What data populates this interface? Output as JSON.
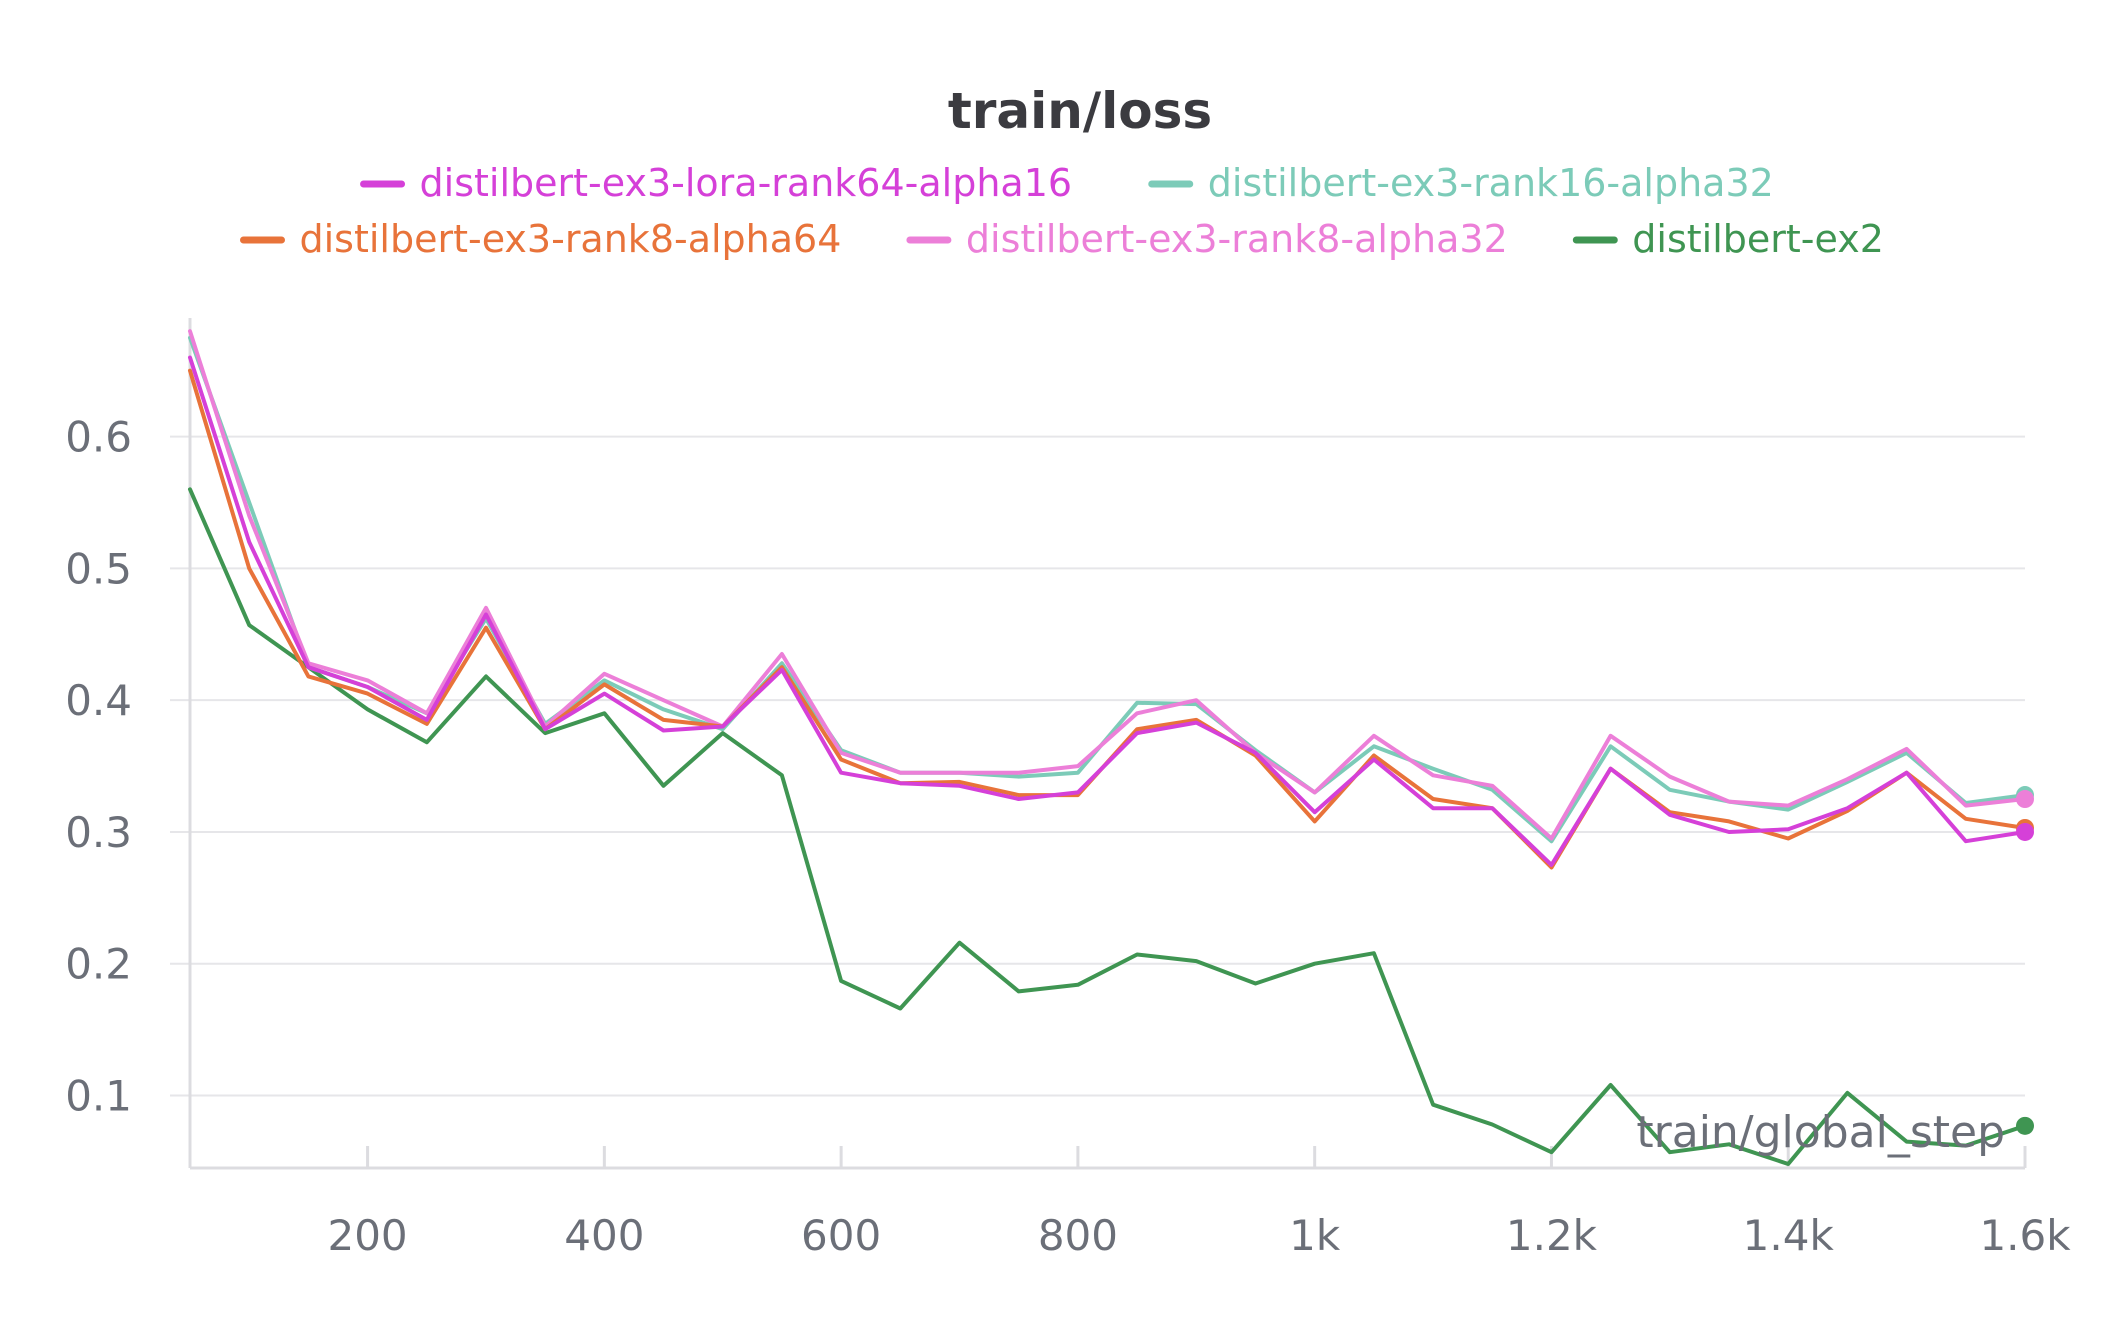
{
  "chart_data": {
    "type": "line",
    "title": "train/loss",
    "xlabel": "train/global_step",
    "ylabel": "",
    "xlim": [
      50,
      1600
    ],
    "ylim": [
      0.045,
      0.69
    ],
    "x_ticks": [
      200,
      400,
      600,
      800,
      1000,
      1200,
      1400,
      1600
    ],
    "x_tick_labels": [
      "200",
      "400",
      "600",
      "800",
      "1k",
      "1.2k",
      "1.4k",
      "1.6k"
    ],
    "y_ticks": [
      0.1,
      0.2,
      0.3,
      0.4,
      0.5,
      0.6
    ],
    "y_tick_labels": [
      "0.1",
      "0.2",
      "0.3",
      "0.4",
      "0.5",
      "0.6"
    ],
    "grid": true,
    "legend_position": "top",
    "x": [
      50,
      100,
      150,
      200,
      250,
      300,
      350,
      400,
      450,
      500,
      550,
      600,
      650,
      700,
      750,
      800,
      850,
      900,
      950,
      1000,
      1050,
      1100,
      1150,
      1200,
      1250,
      1300,
      1350,
      1400,
      1450,
      1500,
      1550,
      1600
    ],
    "series": [
      {
        "name": "distilbert-ex3-lora-rank64-alpha16",
        "color": "#d540d8",
        "values": [
          0.66,
          0.52,
          0.425,
          0.41,
          0.385,
          0.465,
          0.378,
          0.405,
          0.377,
          0.38,
          0.423,
          0.345,
          0.337,
          0.335,
          0.325,
          0.33,
          0.375,
          0.383,
          0.36,
          0.315,
          0.355,
          0.318,
          0.318,
          0.275,
          0.348,
          0.313,
          0.3,
          0.302,
          0.318,
          0.345,
          0.293,
          0.3
        ]
      },
      {
        "name": "distilbert-ex3-rank16-alpha32",
        "color": "#7ccbb8",
        "values": [
          0.675,
          0.55,
          0.425,
          0.41,
          0.39,
          0.462,
          0.382,
          0.415,
          0.393,
          0.378,
          0.428,
          0.362,
          0.345,
          0.345,
          0.342,
          0.345,
          0.398,
          0.397,
          0.362,
          0.33,
          0.365,
          0.348,
          0.332,
          0.293,
          0.365,
          0.332,
          0.323,
          0.317,
          0.338,
          0.36,
          0.322,
          0.328
        ]
      },
      {
        "name": "distilbert-ex3-rank8-alpha64",
        "color": "#e8733a",
        "values": [
          0.65,
          0.5,
          0.418,
          0.405,
          0.382,
          0.455,
          0.378,
          0.412,
          0.385,
          0.38,
          0.425,
          0.355,
          0.337,
          0.338,
          0.328,
          0.328,
          0.378,
          0.385,
          0.358,
          0.308,
          0.358,
          0.325,
          0.318,
          0.273,
          0.348,
          0.315,
          0.308,
          0.295,
          0.316,
          0.345,
          0.31,
          0.303
        ]
      },
      {
        "name": "distilbert-ex3-rank8-alpha32",
        "color": "#ec7fd8",
        "values": [
          0.68,
          0.54,
          0.428,
          0.415,
          0.39,
          0.47,
          0.38,
          0.42,
          0.4,
          0.38,
          0.435,
          0.36,
          0.345,
          0.345,
          0.345,
          0.35,
          0.39,
          0.4,
          0.36,
          0.33,
          0.373,
          0.343,
          0.335,
          0.295,
          0.373,
          0.342,
          0.323,
          0.32,
          0.34,
          0.363,
          0.32,
          0.325
        ]
      },
      {
        "name": "distilbert-ex2",
        "color": "#3f9552",
        "values": [
          0.56,
          0.457,
          0.425,
          0.393,
          0.368,
          0.418,
          0.375,
          0.39,
          0.335,
          0.375,
          0.343,
          0.187,
          0.166,
          0.216,
          0.179,
          0.184,
          0.207,
          0.202,
          0.185,
          0.2,
          0.208,
          0.093,
          0.078,
          0.057,
          0.108,
          0.057,
          0.063,
          0.048,
          0.102,
          0.065,
          0.062,
          0.077
        ]
      }
    ]
  }
}
